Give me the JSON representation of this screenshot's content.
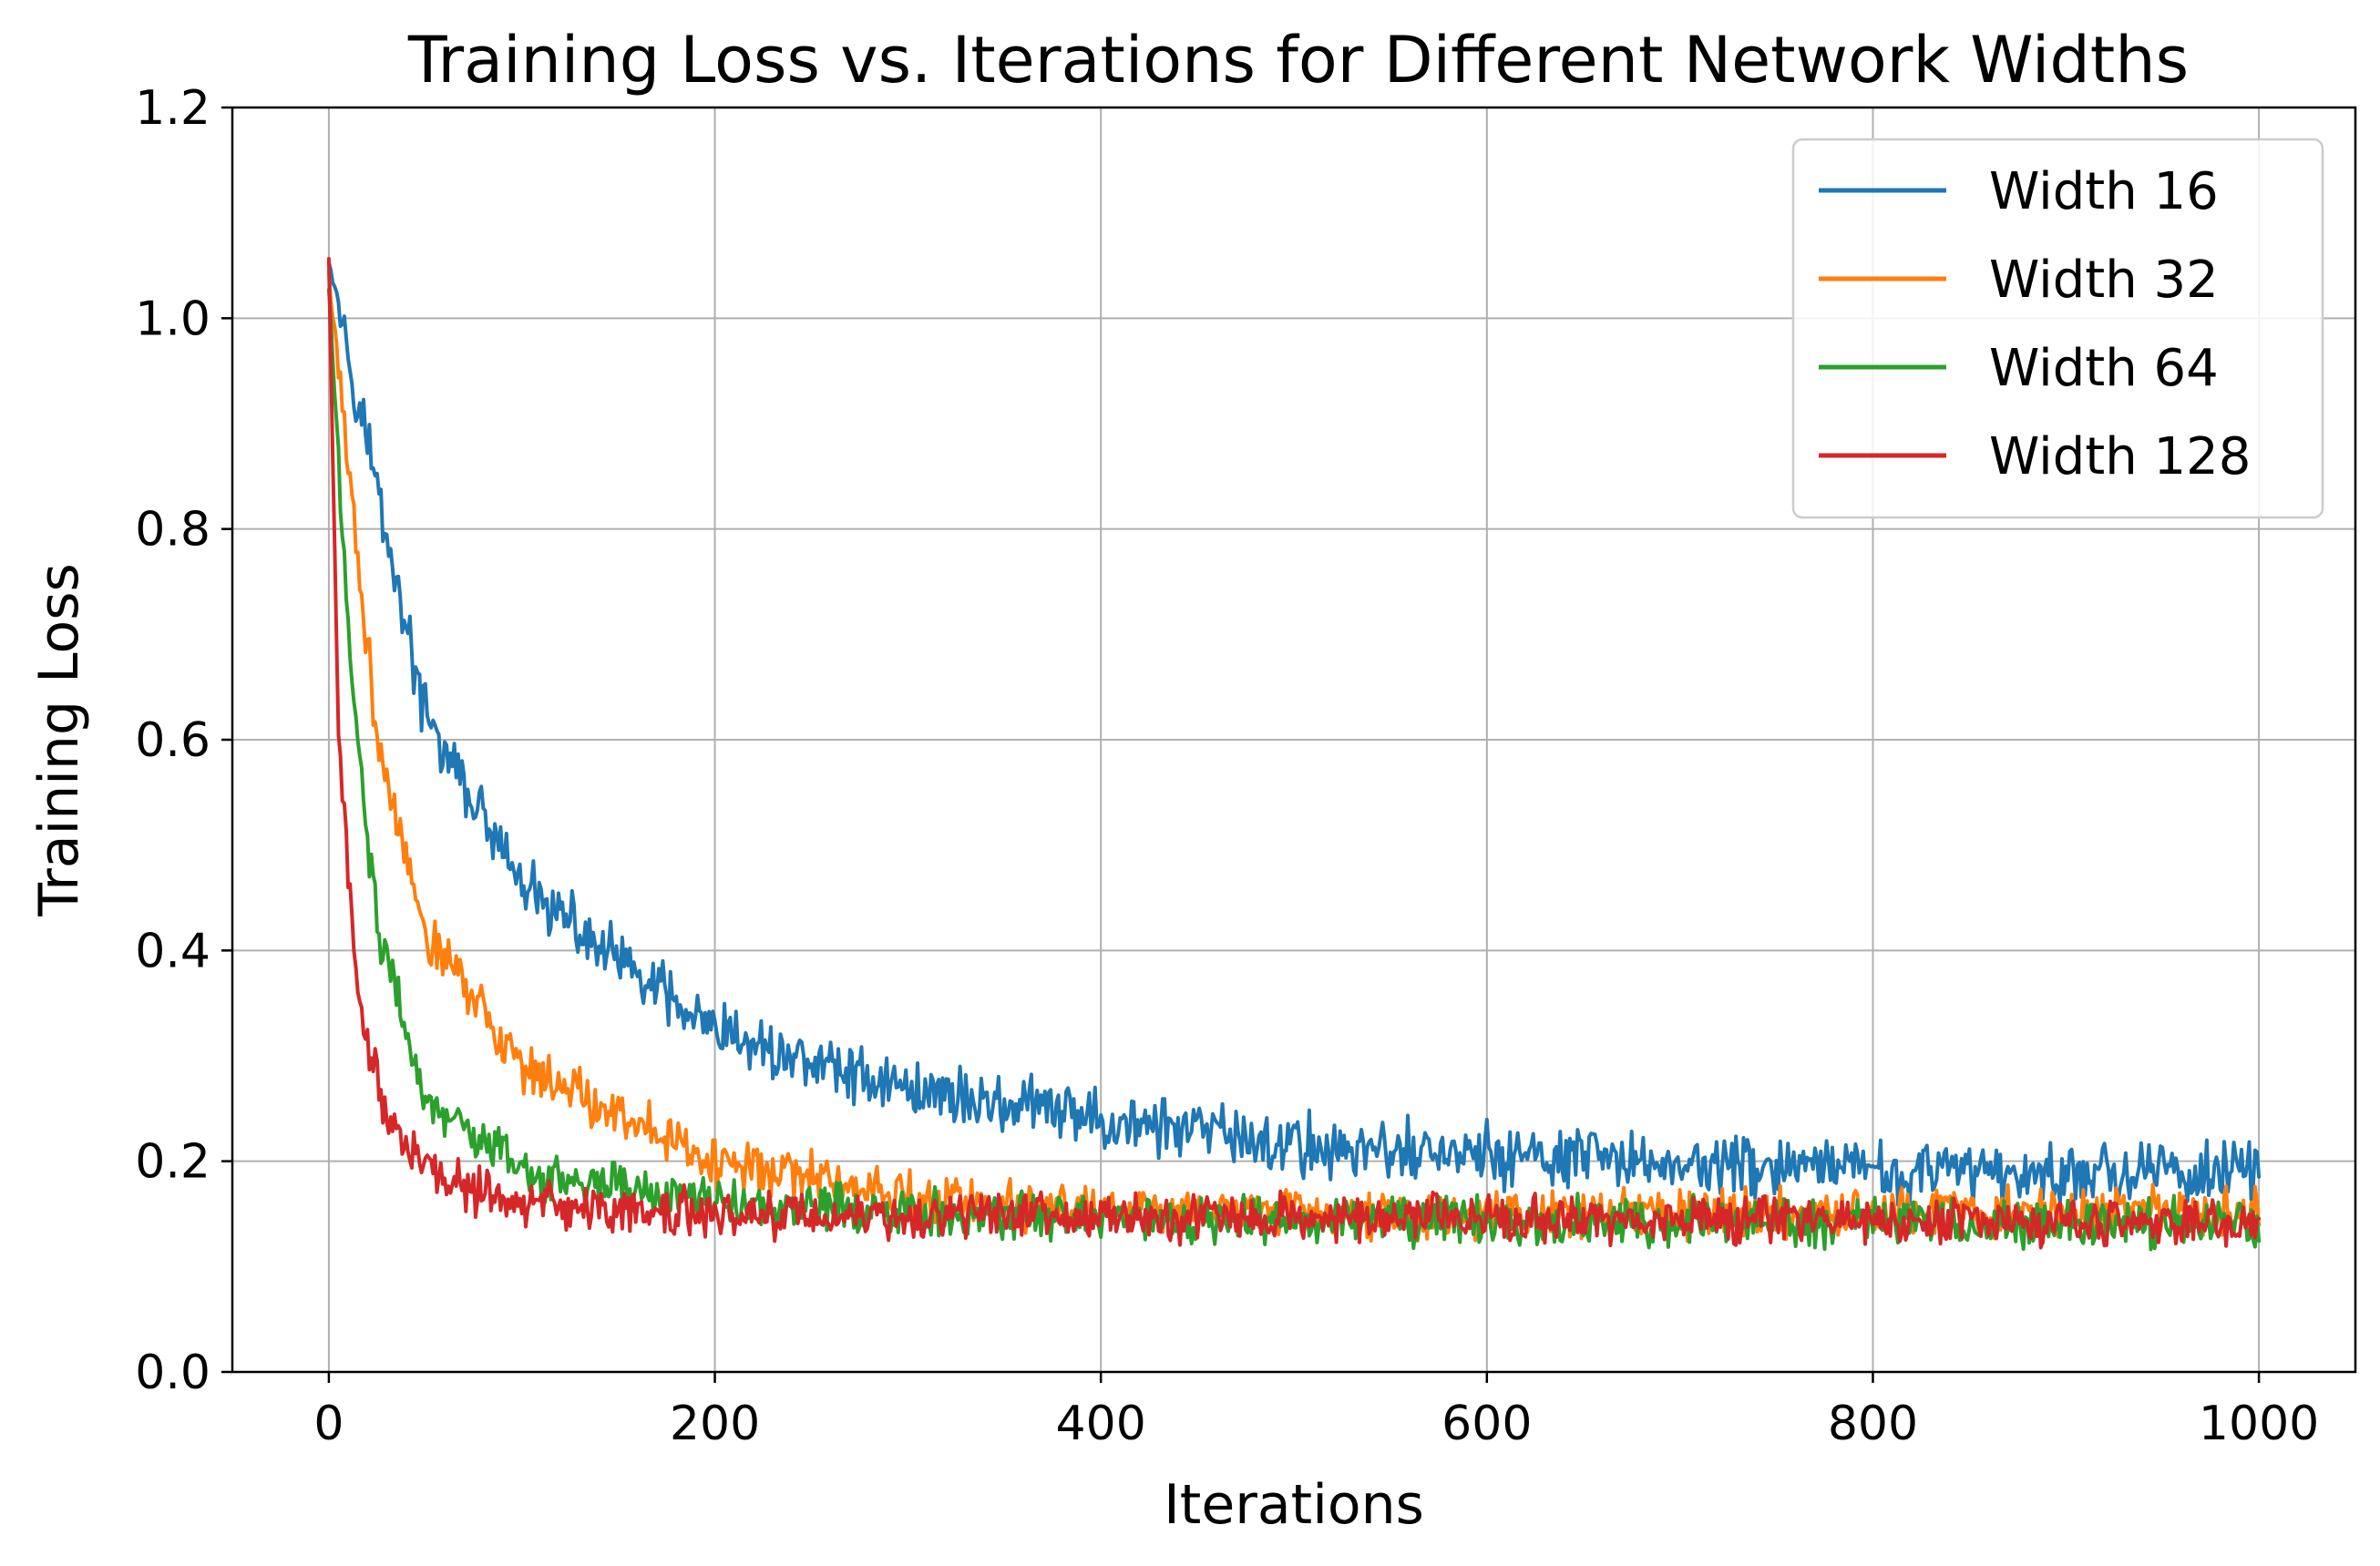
{
  "chart_data": {
    "type": "line",
    "title": "Training Loss vs. Iterations for Different Network Widths",
    "xlabel": "Iterations",
    "ylabel": "Training Loss",
    "xlim": [
      -50,
      1050
    ],
    "ylim": [
      0.0,
      1.2
    ],
    "xticks": [
      0,
      200,
      400,
      600,
      800,
      1000
    ],
    "xtick_labels": [
      "0",
      "200",
      "400",
      "600",
      "800",
      "1000"
    ],
    "yticks": [
      0.0,
      0.2,
      0.4,
      0.6,
      0.8,
      1.0,
      1.2
    ],
    "ytick_labels": [
      "0.0",
      "0.2",
      "0.4",
      "0.6",
      "0.8",
      "1.0",
      "1.2"
    ],
    "grid": true,
    "legend_position": "top-right",
    "x": [
      0,
      1000
    ],
    "series": [
      {
        "name": "Width 16",
        "color": "#1f77b4",
        "start": 1.06,
        "plateau": 0.185,
        "decay_iters": 150,
        "noise": 0.022,
        "anchors": [
          [
            0,
            1.06
          ],
          [
            50,
            0.62
          ],
          [
            100,
            0.46
          ],
          [
            200,
            0.32
          ],
          [
            300,
            0.27
          ],
          [
            400,
            0.24
          ],
          [
            500,
            0.215
          ],
          [
            600,
            0.205
          ],
          [
            800,
            0.19
          ],
          [
            1000,
            0.19
          ]
        ]
      },
      {
        "name": "Width 32",
        "color": "#ff7f0e",
        "start": 1.04,
        "plateau": 0.145,
        "decay_iters": 55,
        "noise": 0.018,
        "anchors": [
          [
            0,
            1.04
          ],
          [
            25,
            0.6
          ],
          [
            50,
            0.42
          ],
          [
            100,
            0.29
          ],
          [
            200,
            0.2
          ],
          [
            300,
            0.165
          ],
          [
            400,
            0.155
          ],
          [
            600,
            0.15
          ],
          [
            1000,
            0.15
          ]
        ]
      },
      {
        "name": "Width 64",
        "color": "#2ca02c",
        "start": 1.03,
        "plateau": 0.14,
        "decay_iters": 22,
        "noise": 0.017,
        "anchors": [
          [
            0,
            1.03
          ],
          [
            10,
            0.7
          ],
          [
            25,
            0.42
          ],
          [
            50,
            0.26
          ],
          [
            100,
            0.19
          ],
          [
            200,
            0.16
          ],
          [
            400,
            0.145
          ],
          [
            1000,
            0.14
          ]
        ]
      },
      {
        "name": "Width 128",
        "color": "#d62728",
        "start": 1.05,
        "plateau": 0.14,
        "decay_iters": 10,
        "noise": 0.017,
        "anchors": [
          [
            0,
            1.05
          ],
          [
            5,
            0.6
          ],
          [
            15,
            0.35
          ],
          [
            30,
            0.24
          ],
          [
            60,
            0.18
          ],
          [
            100,
            0.16
          ],
          [
            200,
            0.15
          ],
          [
            1000,
            0.14
          ]
        ]
      }
    ]
  }
}
